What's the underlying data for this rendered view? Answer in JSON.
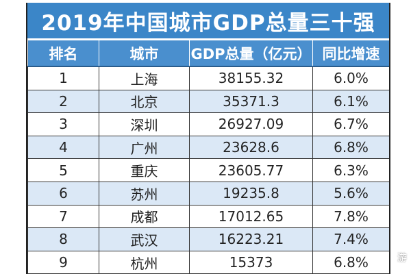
{
  "title": "2019年中国城市GDP总量三十强",
  "table": {
    "headers": [
      "排名",
      "城市",
      "GDP总量（亿元）",
      "同比增速"
    ],
    "rows": [
      [
        "1",
        "上海",
        "38155.32",
        "6.0%"
      ],
      [
        "2",
        "北京",
        "35371.3",
        "6.1%"
      ],
      [
        "3",
        "深圳",
        "26927.09",
        "6.7%"
      ],
      [
        "4",
        "广州",
        "23628.6",
        "6.8%"
      ],
      [
        "5",
        "重庆",
        "23605.77",
        "6.3%"
      ],
      [
        "6",
        "苏州",
        "19235.8",
        "5.6%"
      ],
      [
        "7",
        "成都",
        "17012.65",
        "7.8%"
      ],
      [
        "8",
        "武汉",
        "16223.21",
        "7.4%"
      ],
      [
        "9",
        "杭州",
        "15373",
        "6.8%"
      ]
    ]
  },
  "watermark": "游",
  "colors": {
    "title_bg": "#3b86c8",
    "header_bg": "#4a8fce",
    "alt_row_bg": "#dbe8f6"
  }
}
